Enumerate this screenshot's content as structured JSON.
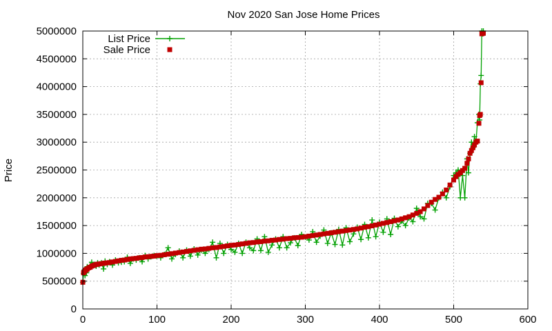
{
  "chart_data": {
    "type": "scatter",
    "title": "Nov 2020 San Jose Home Prices",
    "xlabel": "",
    "ylabel": "Price",
    "xlim": [
      0,
      600
    ],
    "ylim": [
      0,
      5000000
    ],
    "grid": true,
    "legend_position": "top-left",
    "xticks": [
      "0",
      "100",
      "200",
      "300",
      "400",
      "500",
      "600"
    ],
    "yticks": [
      "0",
      "500000",
      "1000000",
      "1500000",
      "2000000",
      "2500000",
      "3000000",
      "3500000",
      "4000000",
      "4500000",
      "5000000"
    ],
    "series": [
      {
        "name": "List Price",
        "style": "line-plus",
        "color": "#00a000",
        "x": [
          0,
          1,
          2,
          3,
          4,
          5,
          6,
          8,
          10,
          12,
          14,
          16,
          18,
          20,
          22,
          25,
          28,
          30,
          33,
          36,
          40,
          44,
          48,
          52,
          56,
          60,
          64,
          68,
          72,
          76,
          80,
          84,
          88,
          92,
          96,
          100,
          105,
          110,
          115,
          120,
          125,
          130,
          135,
          140,
          145,
          150,
          155,
          160,
          165,
          170,
          175,
          180,
          185,
          190,
          195,
          200,
          205,
          210,
          215,
          220,
          225,
          230,
          235,
          240,
          245,
          250,
          255,
          260,
          265,
          270,
          275,
          280,
          285,
          290,
          295,
          300,
          305,
          310,
          315,
          320,
          325,
          330,
          335,
          340,
          345,
          350,
          355,
          360,
          365,
          370,
          375,
          380,
          385,
          390,
          395,
          400,
          405,
          410,
          415,
          420,
          425,
          430,
          435,
          440,
          445,
          450,
          455,
          460,
          465,
          470,
          475,
          480,
          485,
          490,
          495,
          500,
          503,
          506,
          509,
          512,
          515,
          518,
          520,
          522,
          524,
          526,
          528,
          530,
          532,
          534,
          535,
          536,
          537,
          538,
          539,
          540
        ],
        "values": [
          480000,
          640000,
          700000,
          600000,
          720000,
          650000,
          760000,
          720000,
          780000,
          840000,
          780000,
          800000,
          770000,
          830000,
          790000,
          830000,
          720000,
          860000,
          800000,
          850000,
          790000,
          880000,
          830000,
          840000,
          850000,
          930000,
          820000,
          900000,
          880000,
          920000,
          850000,
          960000,
          900000,
          940000,
          960000,
          950000,
          920000,
          980000,
          1100000,
          900000,
          980000,
          1040000,
          920000,
          1060000,
          950000,
          1080000,
          970000,
          1060000,
          1000000,
          1070000,
          1200000,
          920000,
          1180000,
          1000000,
          1160000,
          1070000,
          1020000,
          1180000,
          1000000,
          1200000,
          1100000,
          1050000,
          1260000,
          1050000,
          1300000,
          1020000,
          1150000,
          1260000,
          1100000,
          1300000,
          1100000,
          1190000,
          1280000,
          1140000,
          1340000,
          1290000,
          1240000,
          1390000,
          1200000,
          1310000,
          1420000,
          1180000,
          1370000,
          1160000,
          1430000,
          1150000,
          1460000,
          1210000,
          1350000,
          1470000,
          1250000,
          1520000,
          1280000,
          1600000,
          1300000,
          1560000,
          1380000,
          1620000,
          1340000,
          1630000,
          1480000,
          1580000,
          1500000,
          1640000,
          1570000,
          1810000,
          1660000,
          1620000,
          1900000,
          1900000,
          1780000,
          2000000,
          2100000,
          2000000,
          2200000,
          2400000,
          2450000,
          2500000,
          2000000,
          2400000,
          2000000,
          2700000,
          2450000,
          2800000,
          3000000,
          2900000,
          3100000,
          3000000,
          3350000,
          3500000,
          3400000,
          4050000,
          4200000,
          5000000,
          4950000,
          5000000
        ]
      },
      {
        "name": "Sale Price",
        "style": "points-square",
        "color": "#c00000",
        "x": [
          0,
          1,
          2,
          3,
          4,
          5,
          6,
          8,
          10,
          12,
          14,
          16,
          18,
          20,
          22,
          25,
          28,
          30,
          33,
          36,
          40,
          44,
          48,
          52,
          56,
          60,
          64,
          68,
          72,
          76,
          80,
          84,
          88,
          92,
          96,
          100,
          105,
          110,
          115,
          120,
          125,
          130,
          135,
          140,
          145,
          150,
          155,
          160,
          165,
          170,
          175,
          180,
          185,
          190,
          195,
          200,
          205,
          210,
          215,
          220,
          225,
          230,
          235,
          240,
          245,
          250,
          255,
          260,
          265,
          270,
          275,
          280,
          285,
          290,
          295,
          300,
          305,
          310,
          315,
          320,
          325,
          330,
          335,
          340,
          345,
          350,
          355,
          360,
          365,
          370,
          375,
          380,
          385,
          390,
          395,
          400,
          405,
          410,
          415,
          420,
          425,
          430,
          435,
          440,
          445,
          450,
          455,
          460,
          465,
          470,
          475,
          480,
          485,
          490,
          495,
          500,
          503,
          506,
          509,
          512,
          515,
          518,
          520,
          522,
          524,
          526,
          528,
          530,
          532,
          534,
          535,
          536,
          537,
          538,
          539,
          540
        ],
        "values": [
          480000,
          650000,
          670000,
          690000,
          700000,
          710000,
          720000,
          740000,
          750000,
          770000,
          780000,
          790000,
          800000,
          805000,
          810000,
          815000,
          820000,
          825000,
          830000,
          835000,
          845000,
          855000,
          865000,
          875000,
          880000,
          890000,
          900000,
          905000,
          910000,
          920000,
          925000,
          935000,
          940000,
          945000,
          950000,
          960000,
          965000,
          975000,
          985000,
          995000,
          1005000,
          1015000,
          1025000,
          1035000,
          1045000,
          1055000,
          1065000,
          1075000,
          1080000,
          1090000,
          1100000,
          1105000,
          1115000,
          1125000,
          1135000,
          1145000,
          1150000,
          1160000,
          1170000,
          1180000,
          1190000,
          1195000,
          1205000,
          1210000,
          1220000,
          1225000,
          1235000,
          1240000,
          1250000,
          1255000,
          1265000,
          1270000,
          1280000,
          1285000,
          1290000,
          1300000,
          1310000,
          1320000,
          1330000,
          1340000,
          1350000,
          1360000,
          1370000,
          1380000,
          1390000,
          1400000,
          1410000,
          1420000,
          1430000,
          1440000,
          1455000,
          1470000,
          1480000,
          1495000,
          1510000,
          1525000,
          1540000,
          1555000,
          1570000,
          1585000,
          1600000,
          1620000,
          1640000,
          1660000,
          1690000,
          1720000,
          1750000,
          1800000,
          1860000,
          1920000,
          1970000,
          2010000,
          2070000,
          2140000,
          2230000,
          2320000,
          2380000,
          2420000,
          2450000,
          2490000,
          2530000,
          2620000,
          2700000,
          2800000,
          2850000,
          2900000,
          2950000,
          3000000,
          3020000,
          3340000,
          3480000,
          3500000,
          4070000,
          4950000,
          4960000,
          4960000
        ]
      }
    ]
  }
}
